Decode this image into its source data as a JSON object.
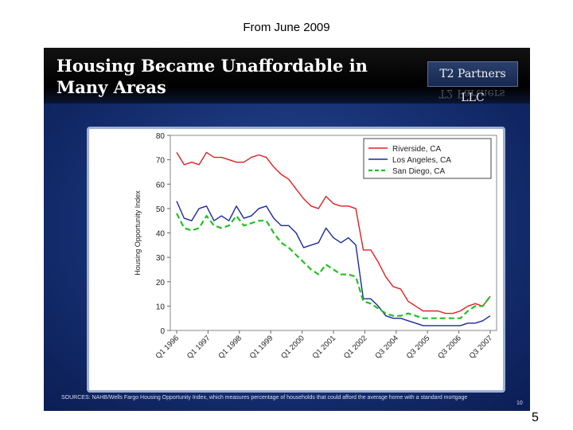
{
  "caption": "From June 2009",
  "slide": {
    "title": "Housing Became Unaffordable in Many Areas",
    "brand": "T2 Partners LLC",
    "sources": "SOURCES: NAHB/Wells Fargo Housing Opportunity Index, which measures percentage of households that could afford the average home with a standard mortgage",
    "slide_number": "10"
  },
  "page_number": "5",
  "colors": {
    "riverside": "#e02020",
    "los_angeles": "#1a2a9c",
    "san_diego": "#22c022"
  },
  "chart_data": {
    "type": "line",
    "title": "",
    "xlabel": "",
    "ylabel": "Housing Opportunity Index",
    "ylim": [
      0,
      80
    ],
    "yticks": [
      0,
      10,
      20,
      30,
      40,
      50,
      60,
      70,
      80
    ],
    "xtick_labels": [
      "Q1 1996",
      "Q1 1997",
      "Q1 1998",
      "Q1 1999",
      "Q1 2000",
      "Q1 2001",
      "Q1 2002",
      "Q3 2004",
      "Q3 2005",
      "Q3 2006",
      "Q3 2007"
    ],
    "legend_position": "top-right",
    "series": [
      {
        "name": "Riverside, CA",
        "style": "solid",
        "values": [
          73,
          68,
          69,
          68,
          73,
          71,
          71,
          70,
          69,
          69,
          71,
          72,
          71,
          67,
          64,
          62,
          58,
          54,
          51,
          50,
          55,
          52,
          51,
          51,
          50,
          33,
          33,
          28,
          22,
          18,
          17,
          12,
          10,
          8,
          8,
          8,
          7,
          7,
          8,
          10,
          11,
          10,
          14
        ]
      },
      {
        "name": "Los Angeles, CA",
        "style": "solid",
        "values": [
          53,
          46,
          45,
          50,
          51,
          45,
          47,
          45,
          51,
          46,
          47,
          50,
          51,
          46,
          43,
          43,
          40,
          34,
          35,
          36,
          42,
          38,
          36,
          38,
          35,
          13,
          13,
          10,
          6,
          5,
          5,
          4,
          3,
          2,
          2,
          2,
          2,
          2,
          2,
          3,
          3,
          4,
          6
        ]
      },
      {
        "name": "San Diego, CA",
        "style": "dashed",
        "values": [
          48,
          42,
          41,
          42,
          47,
          43,
          42,
          43,
          47,
          43,
          44,
          45,
          45,
          40,
          36,
          34,
          31,
          28,
          25,
          23,
          27,
          25,
          23,
          23,
          22,
          12,
          11,
          9,
          7,
          6,
          6,
          7,
          6,
          5,
          5,
          5,
          5,
          5,
          5,
          8,
          10,
          10,
          14
        ]
      }
    ]
  }
}
